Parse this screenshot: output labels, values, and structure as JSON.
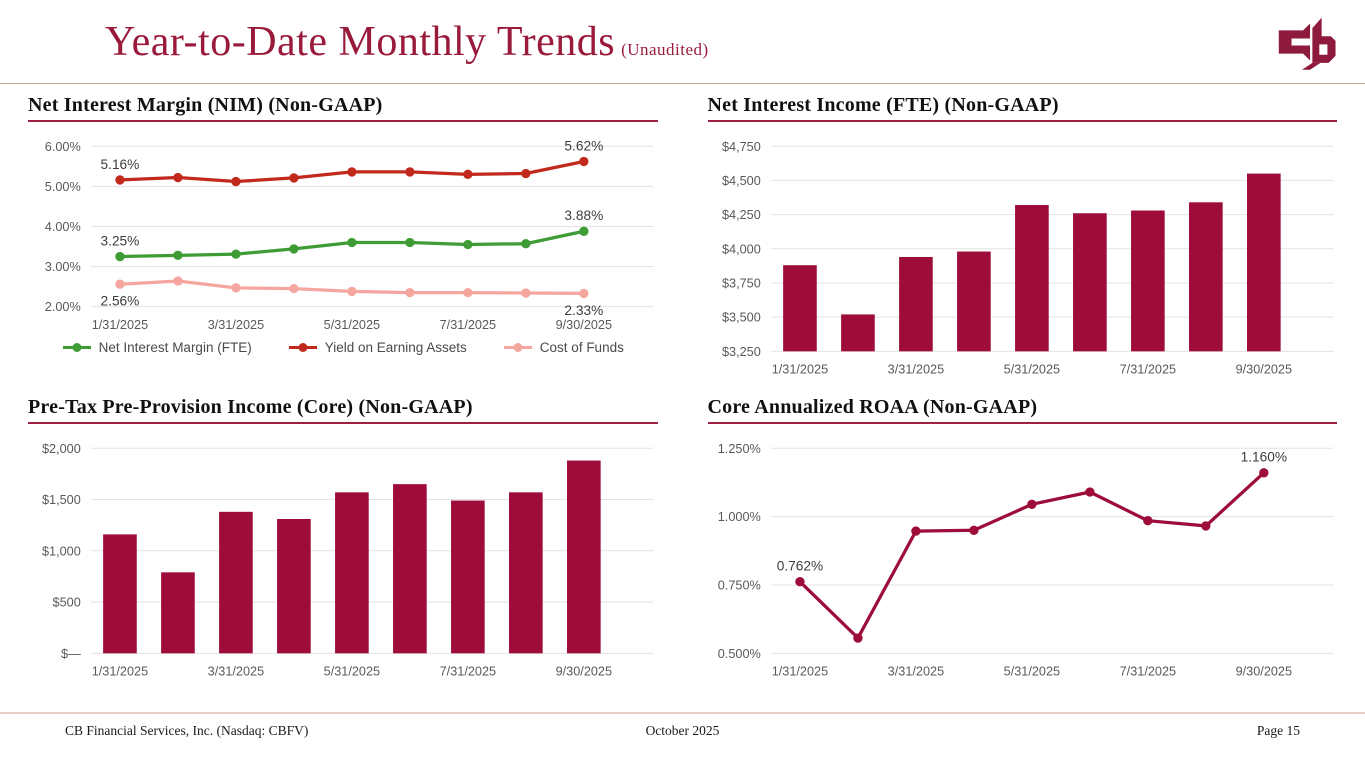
{
  "header": {
    "title": "Year-to-Date Monthly Trends",
    "subtitle": "(Unaudited)",
    "logo_icon": "cb-monogram"
  },
  "colors": {
    "brand": "#9a1a3c",
    "rule": "#a12040",
    "header_line": "#cfa79e",
    "footer_line": "#e8cec5",
    "bar": "#9e0d3a",
    "grid": "#e3e3e3"
  },
  "footer": {
    "left": "CB Financial Services, Inc. (Nasdaq: CBFV)",
    "center": "October 2025",
    "right": "Page 15"
  },
  "chart_data": [
    {
      "type": "line",
      "title": "Net Interest Margin (NIM) (Non-GAAP)",
      "x_ticks": [
        "1/31/2025",
        "3/31/2025",
        "5/31/2025",
        "7/31/2025",
        "9/30/2025"
      ],
      "n_points": 9,
      "ylim": [
        2.0,
        6.0
      ],
      "grid": true,
      "legend_position": "bottom",
      "yticks": [
        {
          "v": 6.0,
          "label": "6.00%"
        },
        {
          "v": 5.0,
          "label": "5.00%"
        },
        {
          "v": 4.0,
          "label": "4.00%"
        },
        {
          "v": 3.0,
          "label": "3.00%"
        },
        {
          "v": 2.0,
          "label": "2.00%"
        }
      ],
      "series": [
        {
          "name": "Net Interest Margin (FTE)",
          "color": "#3f9c35",
          "values": [
            3.25,
            3.28,
            3.31,
            3.44,
            3.6,
            3.6,
            3.55,
            3.57,
            3.88
          ]
        },
        {
          "name": "Yield on Earning Assets",
          "color": "#c2291d",
          "values": [
            5.16,
            5.22,
            5.12,
            5.21,
            5.36,
            5.36,
            5.3,
            5.32,
            5.62
          ]
        },
        {
          "name": "Cost of Funds",
          "color": "#f5a79f",
          "values": [
            2.56,
            2.64,
            2.47,
            2.45,
            2.38,
            2.35,
            2.35,
            2.34,
            2.33
          ]
        }
      ],
      "legend": true,
      "annotations": [
        {
          "s": 1,
          "p": 0,
          "text": "5.16%",
          "pos": "above"
        },
        {
          "s": 1,
          "p": 8,
          "text": "5.62%",
          "pos": "above"
        },
        {
          "s": 0,
          "p": 0,
          "text": "3.25%",
          "pos": "above"
        },
        {
          "s": 0,
          "p": 8,
          "text": "3.88%",
          "pos": "above"
        },
        {
          "s": 2,
          "p": 0,
          "text": "2.56%",
          "pos": "below"
        },
        {
          "s": 2,
          "p": 8,
          "text": "2.33%",
          "pos": "below"
        }
      ]
    },
    {
      "type": "bar",
      "title": "Net Interest Income (FTE) (Non-GAAP)",
      "x_ticks": [
        "1/31/2025",
        "3/31/2025",
        "5/31/2025",
        "7/31/2025",
        "9/30/2025"
      ],
      "n_points": 9,
      "ylim": [
        3250,
        4750
      ],
      "grid": true,
      "yticks": [
        {
          "v": 4750,
          "label": "$4,750"
        },
        {
          "v": 4500,
          "label": "$4,500"
        },
        {
          "v": 4250,
          "label": "$4,250"
        },
        {
          "v": 4000,
          "label": "$4,000"
        },
        {
          "v": 3750,
          "label": "$3,750"
        },
        {
          "v": 3500,
          "label": "$3,500"
        },
        {
          "v": 3250,
          "label": "$3,250"
        }
      ],
      "series": [
        {
          "name": "Net Interest Income (FTE)",
          "color": "#9e0d3a",
          "values": [
            3880,
            3520,
            3940,
            3980,
            4320,
            4260,
            4280,
            4340,
            4550
          ]
        }
      ],
      "legend": false,
      "annotations": []
    },
    {
      "type": "bar",
      "title": "Pre-Tax Pre-Provision Income (Core) (Non-GAAP)",
      "x_ticks": [
        "1/31/2025",
        "3/31/2025",
        "5/31/2025",
        "7/31/2025",
        "9/30/2025"
      ],
      "n_points": 9,
      "ylim": [
        0,
        2000
      ],
      "grid": true,
      "yticks": [
        {
          "v": 2000,
          "label": "$2,000"
        },
        {
          "v": 1500,
          "label": "$1,500"
        },
        {
          "v": 1000,
          "label": "$1,000"
        },
        {
          "v": 500,
          "label": "$500"
        },
        {
          "v": 0,
          "label": "$—"
        }
      ],
      "series": [
        {
          "name": "Pre-Tax Pre-Provision Income (Core)",
          "color": "#9e0d3a",
          "values": [
            1160,
            790,
            1380,
            1310,
            1570,
            1650,
            1490,
            1570,
            1880
          ]
        }
      ],
      "legend": false,
      "annotations": []
    },
    {
      "type": "line",
      "title": "Core Annualized ROAA (Non-GAAP)",
      "x_ticks": [
        "1/31/2025",
        "3/31/2025",
        "5/31/2025",
        "7/31/2025",
        "9/30/2025"
      ],
      "n_points": 9,
      "ylim": [
        0.5,
        1.25
      ],
      "grid": true,
      "yticks": [
        {
          "v": 1.25,
          "label": "1.250%"
        },
        {
          "v": 1.0,
          "label": "1.000%"
        },
        {
          "v": 0.75,
          "label": "0.750%"
        },
        {
          "v": 0.5,
          "label": "0.500%"
        }
      ],
      "series": [
        {
          "name": "Core Annualized ROAA",
          "color": "#9e0d3a",
          "values": [
            0.762,
            0.556,
            0.947,
            0.95,
            1.045,
            1.09,
            0.985,
            0.966,
            1.16
          ]
        }
      ],
      "legend": false,
      "annotations": [
        {
          "s": 0,
          "p": 0,
          "text": "0.762%",
          "pos": "above"
        },
        {
          "s": 0,
          "p": 8,
          "text": "1.160%",
          "pos": "above"
        }
      ]
    }
  ]
}
